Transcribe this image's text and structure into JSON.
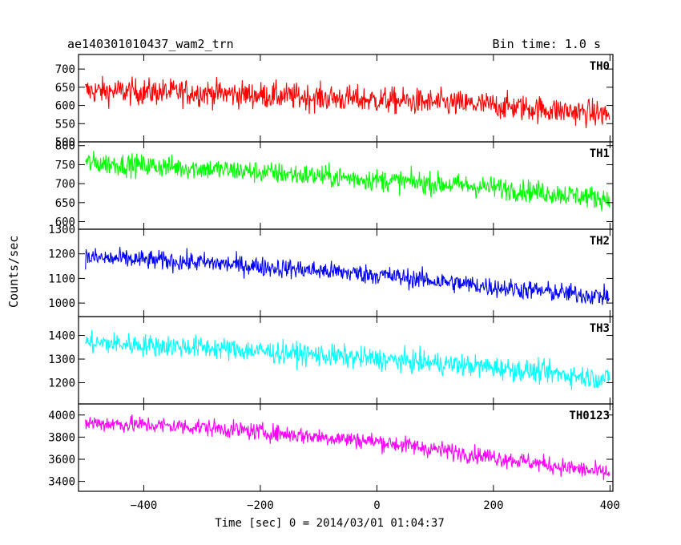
{
  "header": {
    "left_title": "ae140301010437_wam2_trn",
    "right_title": "Bin time: 1.0 s"
  },
  "chart_data": {
    "type": "line",
    "title": "ae140301010437_wam2_trn",
    "bin_time_label": "Bin time: 1.0 s",
    "xlabel": "Time [sec] 0 = 2014/03/01 01:04:37",
    "ylabel": "Counts/sec",
    "xlim": [
      -512,
      405
    ],
    "xticks": [
      -400,
      -200,
      0,
      200,
      400
    ],
    "grid": false,
    "panels": [
      {
        "name": "TH0",
        "color": "#ff0000",
        "ylim": [
          500,
          740
        ],
        "yticks": [
          500,
          550,
          600,
          650,
          700
        ],
        "trend": [
          [
            -500,
            640
          ],
          [
            -300,
            635
          ],
          [
            0,
            615
          ],
          [
            200,
            600
          ],
          [
            400,
            575
          ]
        ],
        "noise": 35
      },
      {
        "name": "TH1",
        "color": "#00ff00",
        "ylim": [
          580,
          810
        ],
        "yticks": [
          600,
          650,
          700,
          750,
          800
        ],
        "trend": [
          [
            -500,
            755
          ],
          [
            -300,
            740
          ],
          [
            0,
            710
          ],
          [
            200,
            690
          ],
          [
            400,
            660
          ]
        ],
        "noise": 28
      },
      {
        "name": "TH2",
        "color": "#0000ff",
        "ylim": [
          945,
          1300
        ],
        "yticks": [
          1000,
          1100,
          1200,
          1300
        ],
        "trend": [
          [
            -500,
            1185
          ],
          [
            -300,
            1165
          ],
          [
            0,
            1115
          ],
          [
            200,
            1065
          ],
          [
            400,
            1025
          ]
        ],
        "noise": 38
      },
      {
        "name": "TH3",
        "color": "#00ffff",
        "ylim": [
          1110,
          1480
        ],
        "yticks": [
          1200,
          1300,
          1400
        ],
        "trend": [
          [
            -500,
            1370
          ],
          [
            -300,
            1350
          ],
          [
            0,
            1300
          ],
          [
            200,
            1265
          ],
          [
            400,
            1215
          ]
        ],
        "noise": 45
      },
      {
        "name": "TH0123",
        "color": "#ff00ff",
        "ylim": [
          3310,
          4100
        ],
        "yticks": [
          3400,
          3600,
          3800,
          4000
        ],
        "trend": [
          [
            -500,
            3930
          ],
          [
            -300,
            3890
          ],
          [
            0,
            3760
          ],
          [
            200,
            3620
          ],
          [
            400,
            3470
          ]
        ],
        "noise": 75
      }
    ]
  }
}
